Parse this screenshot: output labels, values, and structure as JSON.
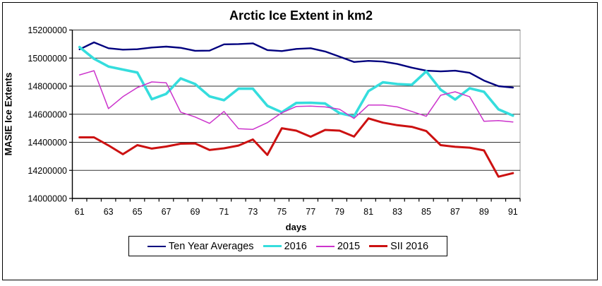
{
  "title": "Arctic Ice Extent in km2",
  "chart_data": {
    "type": "line",
    "title": "Arctic Ice Extent in km2",
    "xlabel": "days",
    "ylabel": "MASIE Ice Extents",
    "x": [
      61,
      62,
      63,
      64,
      65,
      66,
      67,
      68,
      69,
      70,
      71,
      72,
      73,
      74,
      75,
      76,
      77,
      78,
      79,
      80,
      81,
      82,
      83,
      84,
      85,
      86,
      87,
      88,
      89,
      90,
      91
    ],
    "xtick_labels": [
      "61",
      "63",
      "65",
      "67",
      "69",
      "71",
      "73",
      "75",
      "77",
      "79",
      "81",
      "83",
      "85",
      "87",
      "89",
      "91"
    ],
    "yticks": [
      14000000,
      14200000,
      14400000,
      14600000,
      14800000,
      15000000,
      15200000
    ],
    "ytick_labels": [
      "14000000",
      "14200000",
      "14400000",
      "14600000",
      "14800000",
      "15000000",
      "15200000"
    ],
    "ylim": [
      14000000,
      15200000
    ],
    "grid": "horizontal",
    "legend_position": "bottom",
    "series": [
      {
        "name": "Ten Year Averages",
        "color": "#00007E",
        "stroke_width": 2.4,
        "values": [
          15062000,
          15112000,
          15070000,
          15060000,
          15063000,
          15075000,
          15082000,
          15073000,
          15052000,
          15053000,
          15098000,
          15100000,
          15105000,
          15057000,
          15050000,
          15065000,
          15070000,
          15047000,
          15010000,
          14972000,
          14980000,
          14975000,
          14958000,
          14932000,
          14910000,
          14905000,
          14910000,
          14895000,
          14840000,
          14800000,
          14790000
        ]
      },
      {
        "name": "2016",
        "color": "#35DDDD",
        "stroke_width": 3.6,
        "values": [
          15078000,
          14995000,
          14940000,
          14918000,
          14897000,
          14707000,
          14745000,
          14855000,
          14815000,
          14727000,
          14700000,
          14782000,
          14782000,
          14660000,
          14614000,
          14680000,
          14682000,
          14676000,
          14608000,
          14585000,
          14765000,
          14827000,
          14815000,
          14810000,
          14905000,
          14775000,
          14705000,
          14785000,
          14760000,
          14635000,
          14590000
        ]
      },
      {
        "name": "2015",
        "color": "#CC33CC",
        "stroke_width": 1.5,
        "values": [
          14880000,
          14910000,
          14640000,
          14725000,
          14790000,
          14830000,
          14824000,
          14615000,
          14580000,
          14535000,
          14620000,
          14497000,
          14492000,
          14540000,
          14610000,
          14655000,
          14658000,
          14652000,
          14635000,
          14570000,
          14665000,
          14665000,
          14652000,
          14620000,
          14585000,
          14735000,
          14760000,
          14725000,
          14550000,
          14555000,
          14545000
        ]
      },
      {
        "name": "SII 2016",
        "color": "#CC1111",
        "stroke_width": 3.0,
        "values": [
          14435000,
          14435000,
          14378000,
          14315000,
          14380000,
          14355000,
          14370000,
          14390000,
          14392000,
          14345000,
          14357000,
          14377000,
          14420000,
          14310000,
          14500000,
          14483000,
          14440000,
          14488000,
          14483000,
          14441000,
          14570000,
          14540000,
          14522000,
          14510000,
          14480000,
          14380000,
          14368000,
          14362000,
          14342000,
          14155000,
          14180000
        ]
      }
    ],
    "colors": {
      "grid_line": "#333333",
      "plot_border": "#999999",
      "axis_line": "#000000",
      "text": "#000000"
    }
  }
}
